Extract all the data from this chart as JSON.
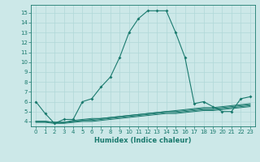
{
  "xlabel": "Humidex (Indice chaleur)",
  "bg_color": "#cce8e8",
  "line_color": "#1a7a6e",
  "grid_color": "#b0d8d8",
  "xlim": [
    -0.5,
    23.5
  ],
  "ylim": [
    3.5,
    15.8
  ],
  "xticks": [
    0,
    1,
    2,
    3,
    4,
    5,
    6,
    7,
    8,
    9,
    10,
    11,
    12,
    13,
    14,
    15,
    16,
    17,
    18,
    19,
    20,
    21,
    22,
    23
  ],
  "yticks": [
    4,
    5,
    6,
    7,
    8,
    9,
    10,
    11,
    12,
    13,
    14,
    15
  ],
  "main_series": [
    6.0,
    4.8,
    3.8,
    4.2,
    4.2,
    6.0,
    6.3,
    7.5,
    8.5,
    10.5,
    13.0,
    14.4,
    15.2,
    15.2,
    15.2,
    13.0,
    10.5,
    5.8,
    6.0,
    5.5,
    5.0,
    5.0,
    6.3,
    6.5
  ],
  "flat_series": [
    [
      4.0,
      4.0,
      3.9,
      3.9,
      4.1,
      4.2,
      4.3,
      4.3,
      4.4,
      4.5,
      4.6,
      4.7,
      4.8,
      4.9,
      5.0,
      5.1,
      5.2,
      5.3,
      5.4,
      5.4,
      5.5,
      5.6,
      5.7,
      5.8
    ],
    [
      4.0,
      4.0,
      3.9,
      3.9,
      4.0,
      4.1,
      4.2,
      4.3,
      4.4,
      4.5,
      4.6,
      4.7,
      4.8,
      4.9,
      5.0,
      5.0,
      5.1,
      5.2,
      5.3,
      5.3,
      5.4,
      5.5,
      5.6,
      5.7
    ],
    [
      4.0,
      4.0,
      3.9,
      3.9,
      4.0,
      4.1,
      4.1,
      4.2,
      4.3,
      4.4,
      4.5,
      4.6,
      4.7,
      4.8,
      4.9,
      4.9,
      5.0,
      5.1,
      5.2,
      5.2,
      5.3,
      5.4,
      5.5,
      5.6
    ],
    [
      3.9,
      3.9,
      3.8,
      3.8,
      3.9,
      4.0,
      4.0,
      4.1,
      4.2,
      4.3,
      4.4,
      4.5,
      4.6,
      4.7,
      4.8,
      4.8,
      4.9,
      5.0,
      5.1,
      5.1,
      5.2,
      5.3,
      5.4,
      5.5
    ]
  ]
}
